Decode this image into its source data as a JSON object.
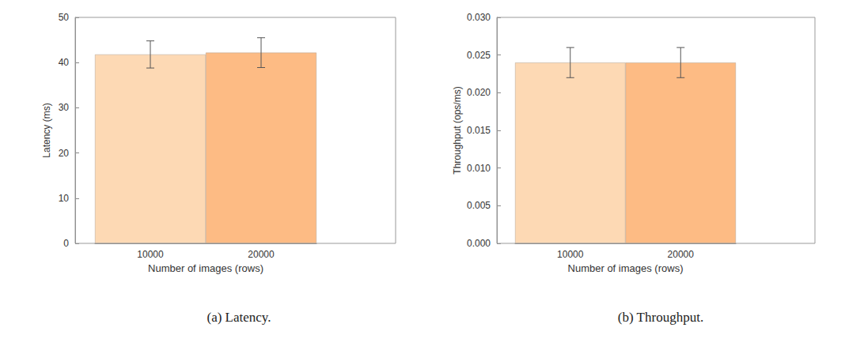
{
  "chart_data": [
    {
      "type": "bar",
      "title": "(a) Latency.",
      "x_label": "Number of images (rows)",
      "y_label": "Latency (ms)",
      "categories": [
        "10000",
        "20000"
      ],
      "values": [
        41.8,
        42.2
      ],
      "errors": [
        3.0,
        3.3
      ],
      "colors": [
        "#fdd9b4",
        "#fdbb84"
      ],
      "ylim": [
        0,
        50
      ],
      "yticks": [
        0,
        10,
        20,
        30,
        40,
        50
      ],
      "grid": false
    },
    {
      "type": "bar",
      "title": "(b) Throughput.",
      "x_label": "Number of images (rows)",
      "y_label": "Throughput (ops/ms)",
      "categories": [
        "10000",
        "20000"
      ],
      "values": [
        0.024,
        0.024
      ],
      "errors": [
        0.002,
        0.002
      ],
      "colors": [
        "#fdd9b4",
        "#fdbb84"
      ],
      "ylim": [
        0,
        0.03
      ],
      "yticks": [
        {
          "value": 0,
          "label": "0.000"
        },
        {
          "value": 0.005,
          "label": "0.005"
        },
        {
          "value": 0.01,
          "label": "0.010"
        },
        {
          "value": 0.015,
          "label": "0.015"
        },
        {
          "value": 0.02,
          "label": "0.020"
        },
        {
          "value": 0.025,
          "label": "0.025"
        },
        {
          "value": 0.03,
          "label": "0.030"
        }
      ],
      "grid": false
    }
  ]
}
